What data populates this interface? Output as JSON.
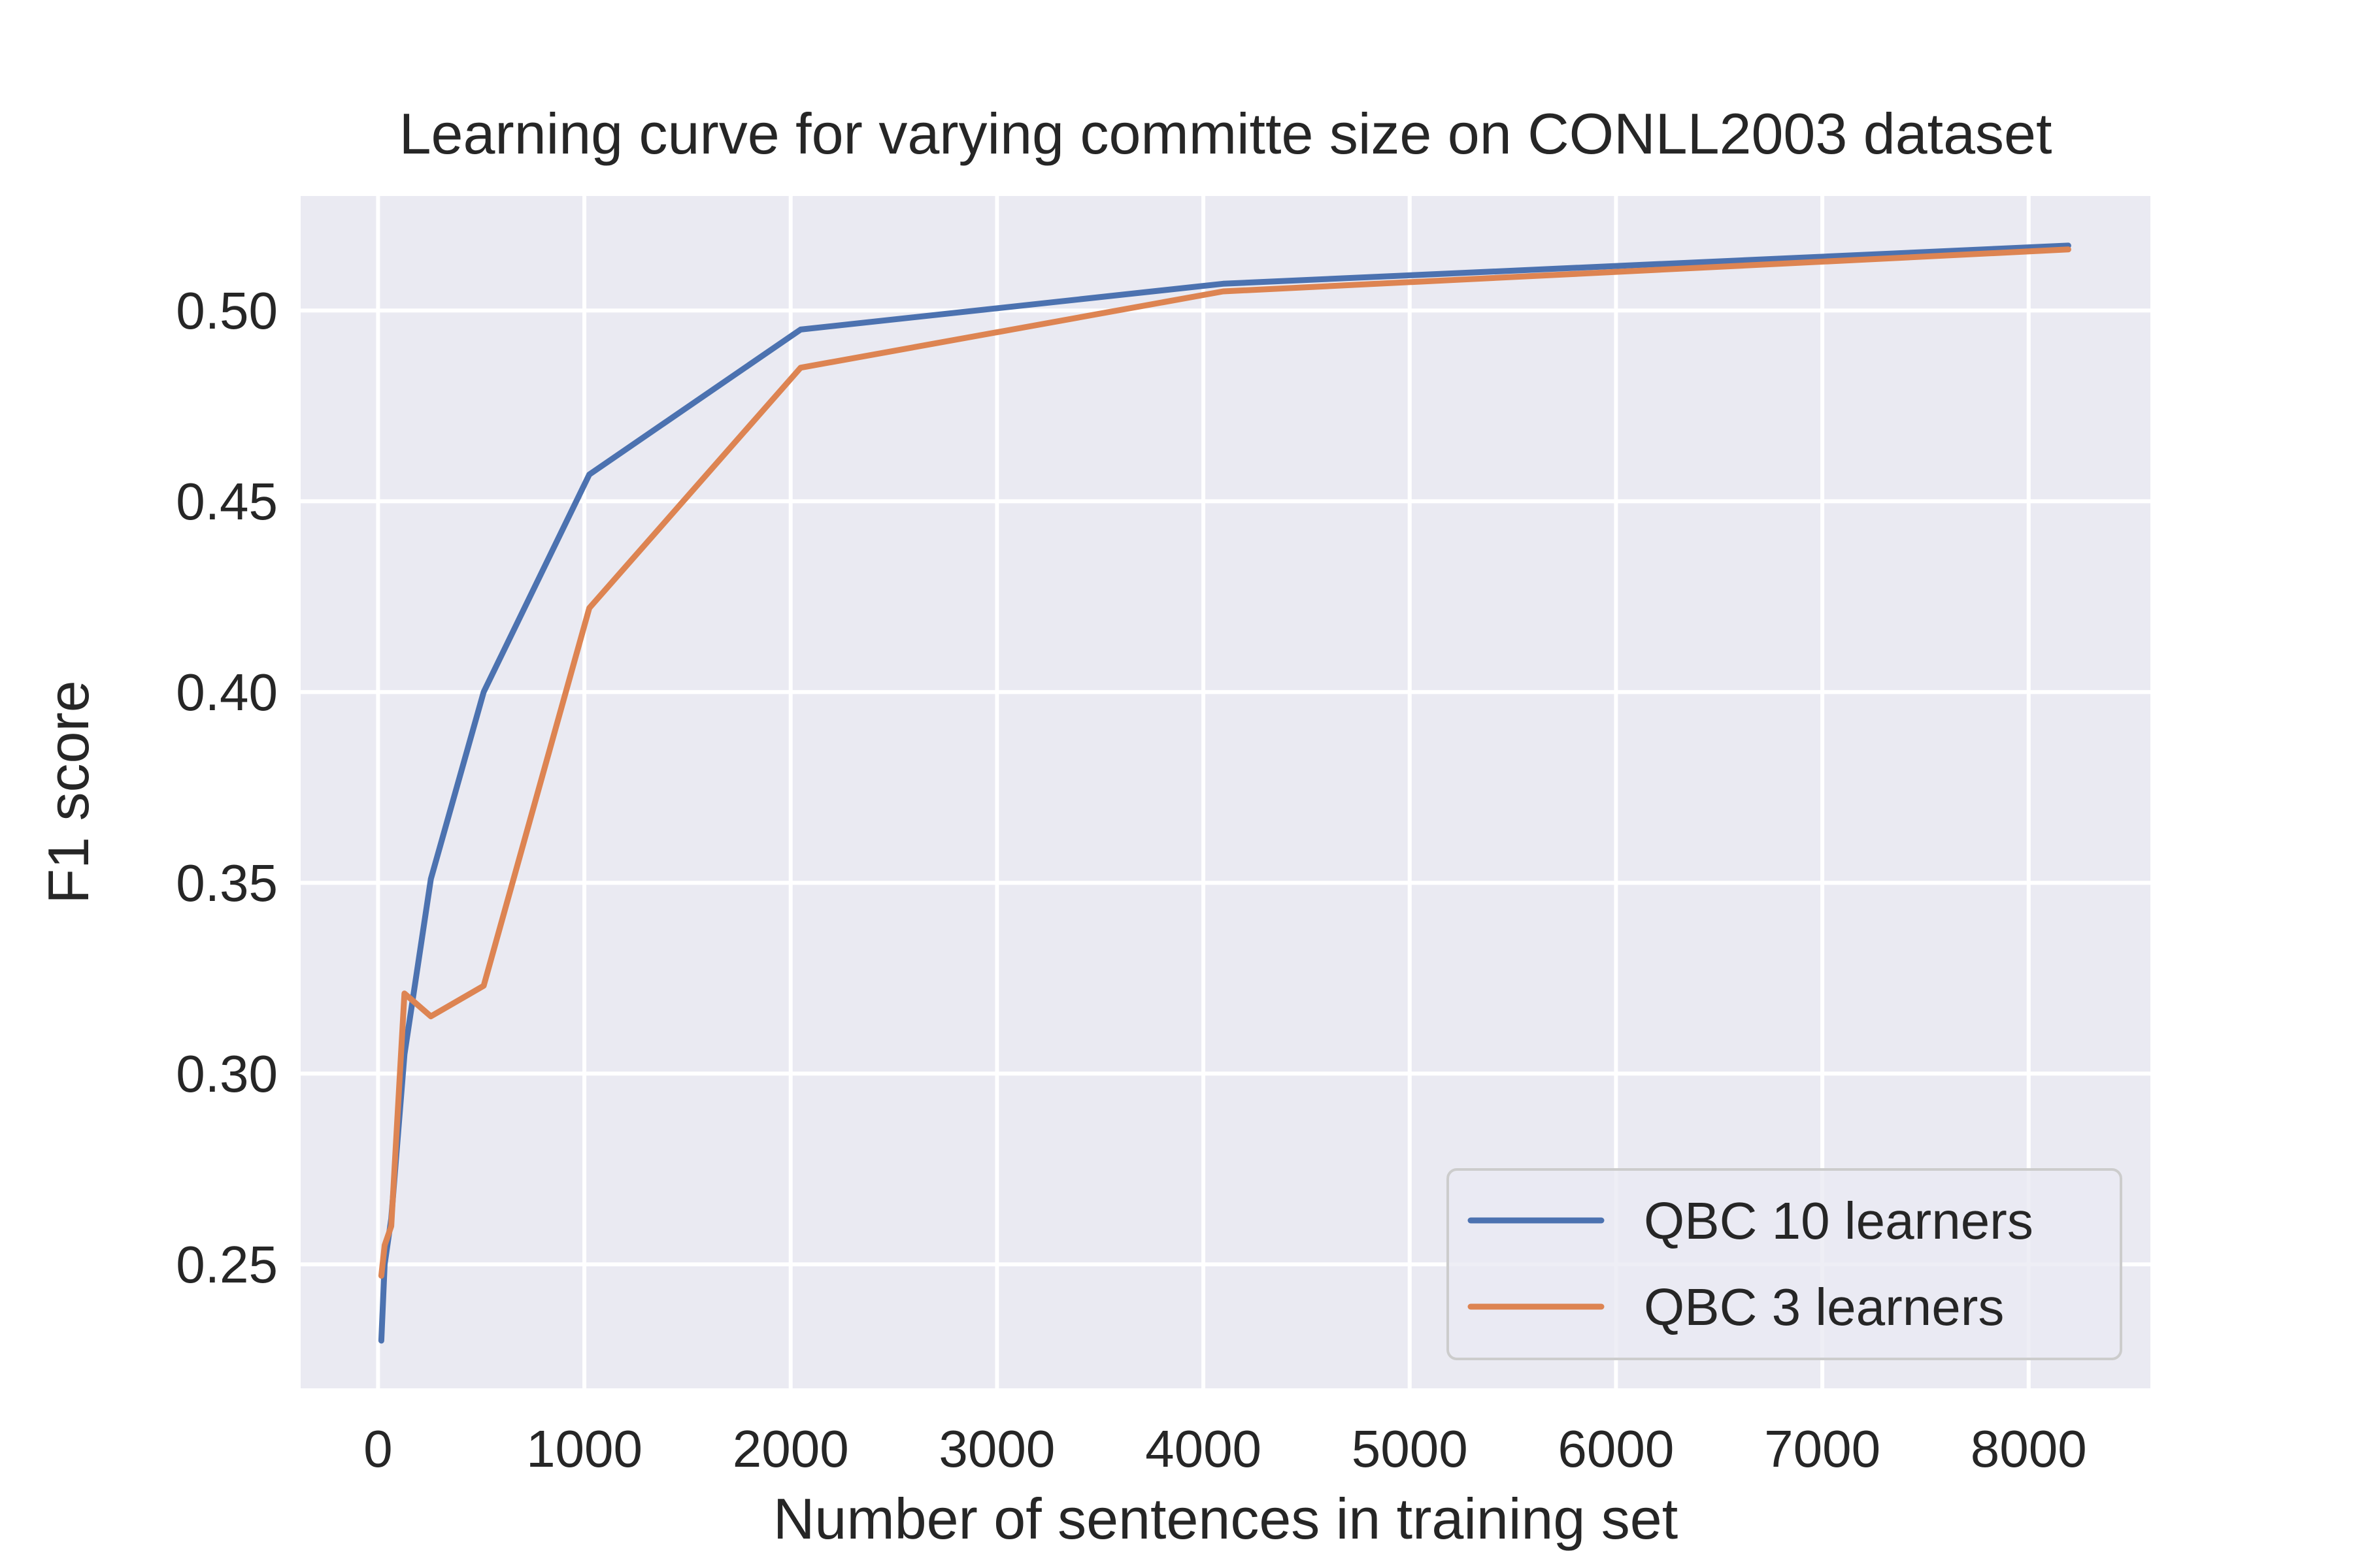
{
  "colors": {
    "plot_background": "#eaeaf2",
    "grid": "#ffffff",
    "text": "#262626",
    "series_1": "#4c72b0",
    "series_2": "#dd8452"
  },
  "chart_data": {
    "type": "line",
    "title": "Learning curve for varying committe size on CONLL2003 dataset",
    "xlabel": "Number of sentences in training set",
    "ylabel": "F1 score",
    "xlim": [
      -375,
      8590
    ],
    "ylim": [
      0.2175,
      0.53
    ],
    "xticks": [
      0,
      1000,
      2000,
      3000,
      4000,
      5000,
      6000,
      7000,
      8000
    ],
    "xtick_labels": [
      "0",
      "1000",
      "2000",
      "3000",
      "4000",
      "5000",
      "6000",
      "7000",
      "8000"
    ],
    "yticks": [
      0.25,
      0.3,
      0.35,
      0.4,
      0.45,
      0.5
    ],
    "ytick_labels": [
      "0.25",
      "0.30",
      "0.35",
      "0.40",
      "0.45",
      "0.50"
    ],
    "grid": true,
    "legend_position": "lower-right",
    "series": [
      {
        "name": "QBC 10 learners",
        "x": [
          16,
          32,
          64,
          128,
          256,
          512,
          1024,
          2048,
          4096,
          8192
        ],
        "y": [
          0.23,
          0.25,
          0.262,
          0.305,
          0.351,
          0.4,
          0.457,
          0.495,
          0.507,
          0.517
        ]
      },
      {
        "name": "QBC 3 learners",
        "x": [
          16,
          32,
          64,
          128,
          256,
          512,
          1024,
          2048,
          4096,
          8192
        ],
        "y": [
          0.247,
          0.255,
          0.26,
          0.321,
          0.315,
          0.323,
          0.422,
          0.485,
          0.505,
          0.516
        ]
      }
    ]
  }
}
